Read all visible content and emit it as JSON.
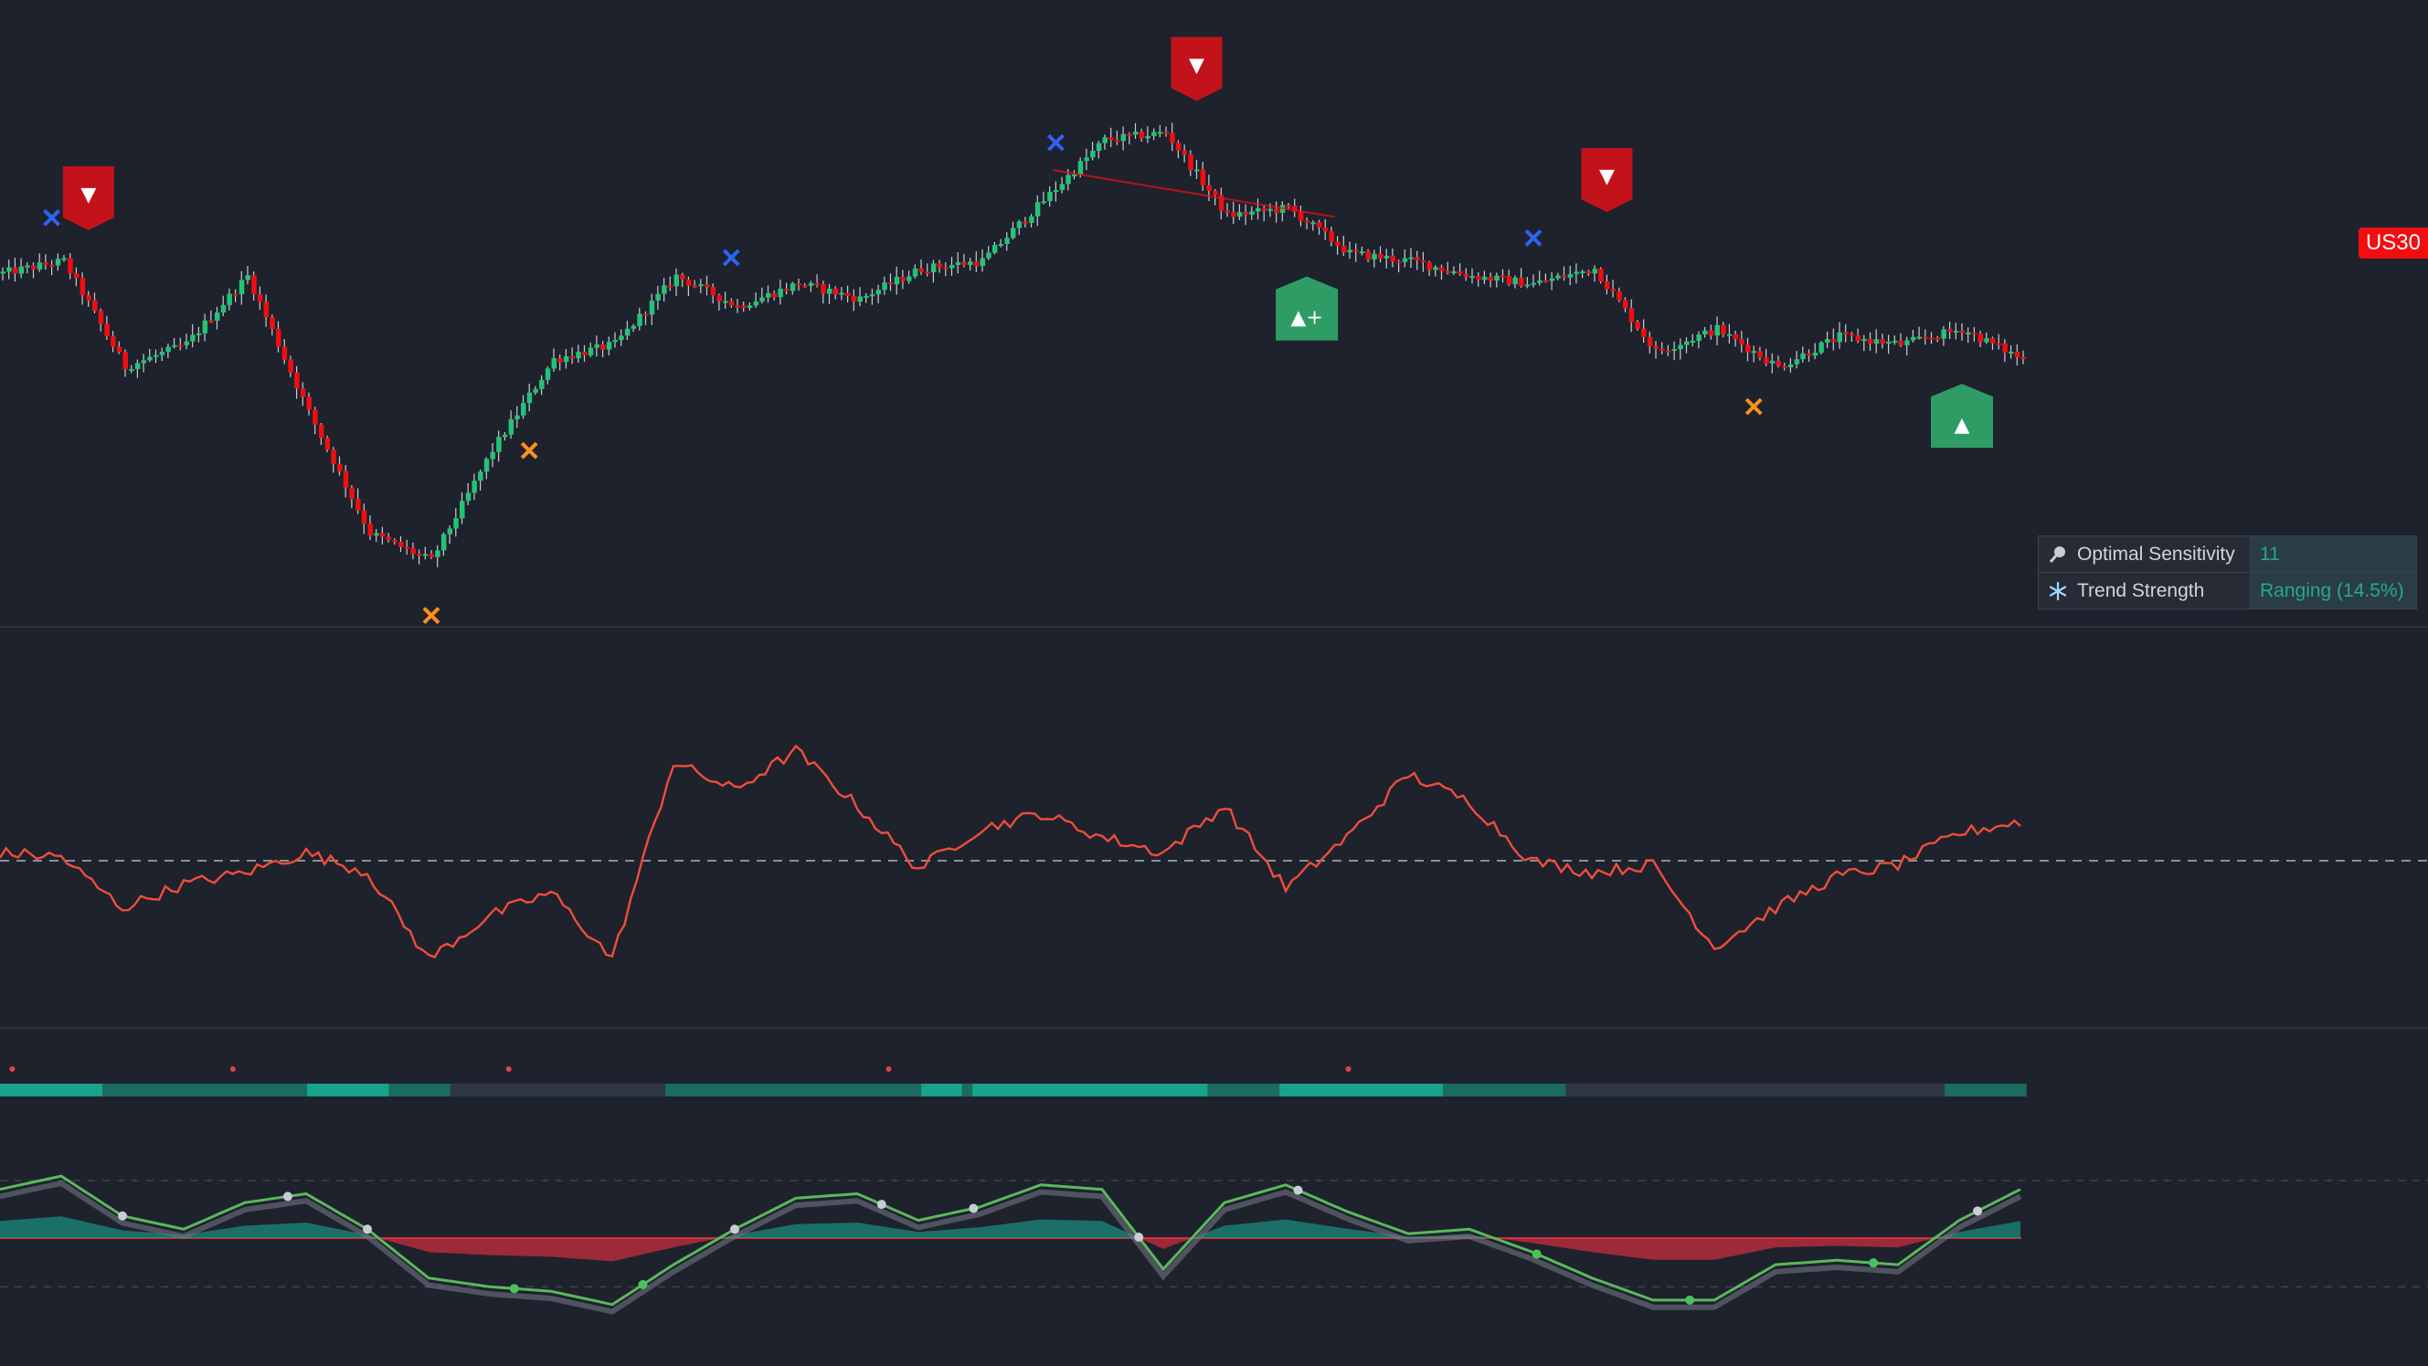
{
  "symbol_label": "US30",
  "colors": {
    "background": "#1e222d",
    "bull": "#22c377",
    "bear": "#f20d10",
    "osc_line": "#ef4d3a",
    "teal": "#18a38c",
    "red_fill": "#f2303f",
    "sell_marker": "#c2131a",
    "buy_marker": "#2e9c64",
    "cross_blue": "#2f62f2",
    "cross_orange": "#ff8f1a"
  },
  "info_table": {
    "rows": [
      {
        "icon": "magnifier-icon",
        "label": "Optimal Sensitivity",
        "value": "11"
      },
      {
        "icon": "snowflake-icon",
        "label": "Trend Strength",
        "value": "Ranging (14.5%)"
      }
    ]
  },
  "markers": [
    {
      "type": "sell",
      "bar": 14,
      "label": "▼"
    },
    {
      "type": "sell",
      "bar": 195,
      "label": "▼"
    },
    {
      "type": "sell",
      "bar": 262,
      "label": "▼"
    },
    {
      "type": "buy",
      "bar": 213,
      "label": "▲+"
    },
    {
      "type": "buy",
      "bar": 320,
      "label": "▲"
    }
  ],
  "cross_marks": [
    {
      "color": "blue",
      "bar": 8
    },
    {
      "color": "orange",
      "bar": 70
    },
    {
      "color": "orange",
      "bar": 86
    },
    {
      "color": "blue",
      "bar": 119
    },
    {
      "color": "blue",
      "bar": 172
    },
    {
      "color": "blue",
      "bar": 250
    },
    {
      "color": "orange",
      "bar": 286
    }
  ],
  "chart_data": {
    "type": "line",
    "panes": [
      {
        "name": "price",
        "style": "candlestick",
        "x": [
          0,
          10,
          20,
          30,
          40,
          50,
          60,
          70,
          80,
          90,
          100,
          110,
          120,
          130,
          140,
          150,
          160,
          170,
          180,
          190,
          200,
          210,
          220,
          230,
          240,
          250,
          260,
          270,
          280,
          290,
          300,
          310,
          320,
          330
        ],
        "y": [
          212,
          220,
          150,
          165,
          210,
          120,
          40,
          22,
          95,
          155,
          165,
          210,
          190,
          205,
          195,
          215,
          220,
          260,
          300,
          305,
          250,
          255,
          225,
          220,
          210,
          205,
          215,
          160,
          175,
          150,
          170,
          165,
          175,
          155
        ]
      },
      {
        "name": "oscillator",
        "x": [
          0,
          10,
          20,
          30,
          40,
          50,
          60,
          70,
          80,
          90,
          100,
          110,
          120,
          130,
          140,
          150,
          160,
          170,
          180,
          190,
          200,
          210,
          220,
          230,
          240,
          250,
          260,
          270,
          280,
          290,
          300,
          310,
          320,
          330
        ],
        "y": [
          2,
          1,
          -12,
          -6,
          -3,
          2,
          -3,
          -25,
          -14,
          -8,
          -25,
          25,
          18,
          28,
          14,
          -2,
          8,
          12,
          6,
          2,
          14,
          -7,
          6,
          22,
          15,
          0,
          -3,
          -1,
          -22,
          -12,
          -4,
          -1,
          7,
          10
        ],
        "reference_line": 0
      },
      {
        "name": "momentum",
        "x": [
          0,
          10,
          20,
          30,
          40,
          50,
          60,
          70,
          80,
          90,
          100,
          110,
          120,
          130,
          140,
          150,
          160,
          170,
          180,
          190,
          200,
          210,
          220,
          230,
          240,
          250,
          260,
          270,
          280,
          290,
          300,
          310,
          320,
          330
        ],
        "y": [
          55,
          70,
          25,
          10,
          40,
          50,
          10,
          -45,
          -55,
          -60,
          -75,
          -30,
          10,
          45,
          50,
          20,
          35,
          60,
          55,
          -35,
          40,
          60,
          30,
          5,
          10,
          -15,
          -45,
          -70,
          -70,
          -30,
          -25,
          -30,
          20,
          55
        ]
      }
    ]
  }
}
